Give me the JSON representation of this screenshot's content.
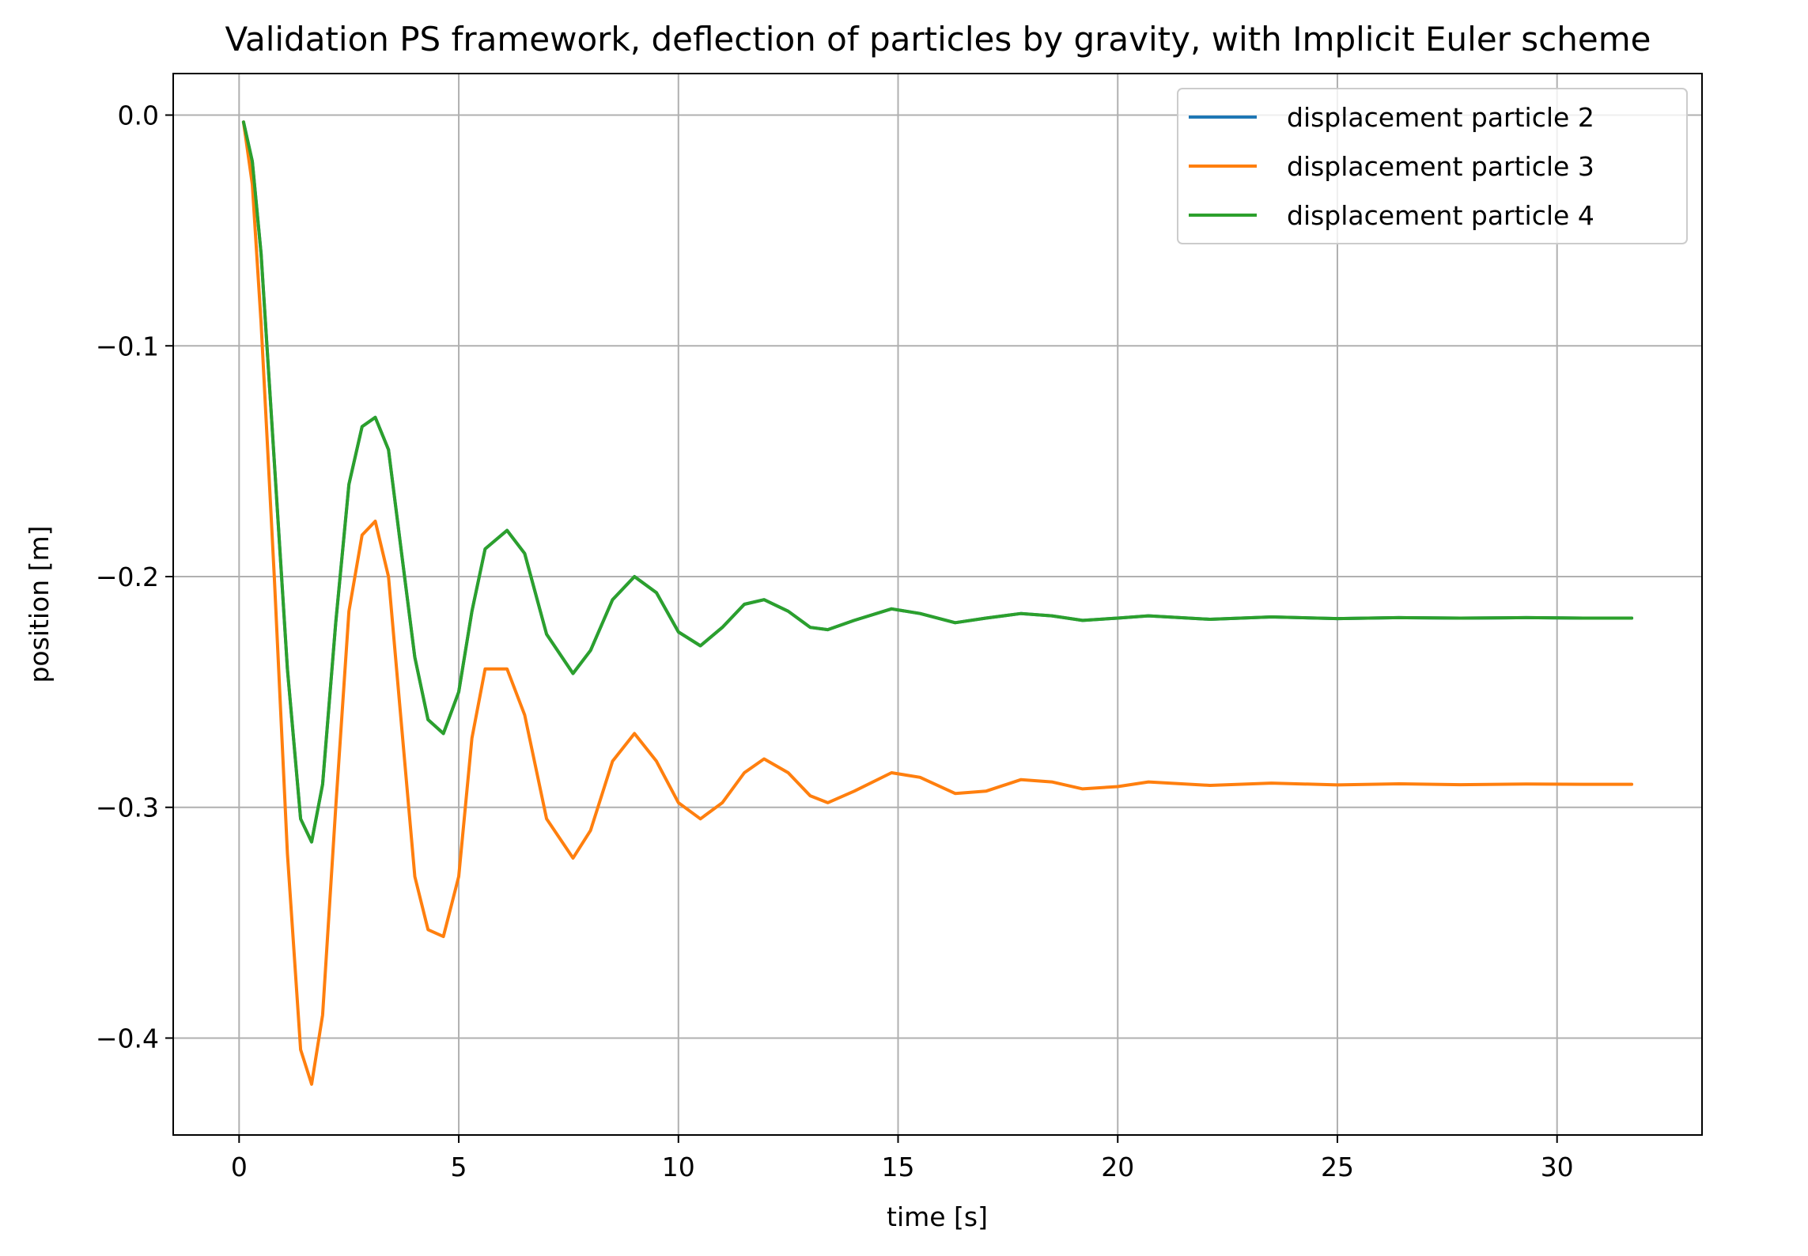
{
  "chart_data": {
    "type": "line",
    "title": "Validation PS framework, deflection of particles by gravity, with Implicit Euler scheme",
    "xlabel": "time [s]",
    "ylabel": "position [m]",
    "xlim": [
      -1.5,
      33.3
    ],
    "ylim": [
      -0.442,
      0.018
    ],
    "xticks": [
      0,
      5,
      10,
      15,
      20,
      25,
      30
    ],
    "xtick_labels": [
      "0",
      "5",
      "10",
      "15",
      "20",
      "25",
      "30"
    ],
    "yticks": [
      0.0,
      -0.1,
      -0.2,
      -0.3,
      -0.4
    ],
    "ytick_labels": [
      "0.0",
      "−0.1",
      "−0.2",
      "−0.3",
      "−0.4"
    ],
    "grid": true,
    "legend_position": "top-right",
    "series": [
      {
        "name": "displacement particle 2",
        "color": "#1f77b4",
        "x": [
          0.1,
          0.3,
          0.5,
          0.8,
          1.1,
          1.4,
          1.65,
          1.9,
          2.2,
          2.5,
          2.8,
          3.1,
          3.4,
          3.7,
          4.0,
          4.3,
          4.65,
          5.0,
          5.3,
          5.6,
          6.1,
          6.5,
          7.0,
          7.6,
          8.0,
          8.5,
          9.0,
          9.5,
          10.0,
          10.5,
          11.0,
          11.5,
          11.95,
          12.5,
          13.0,
          13.4,
          14.0,
          14.85,
          15.5,
          16.3,
          17.0,
          17.8,
          18.5,
          19.2,
          20.0,
          20.7,
          22.1,
          23.5,
          25.0,
          26.4,
          27.8,
          29.3,
          30.6,
          31.7
        ],
        "y": [
          -0.003,
          -0.02,
          -0.06,
          -0.15,
          -0.24,
          -0.305,
          -0.315,
          -0.29,
          -0.22,
          -0.16,
          -0.135,
          -0.131,
          -0.145,
          -0.19,
          -0.235,
          -0.262,
          -0.268,
          -0.25,
          -0.215,
          -0.188,
          -0.18,
          -0.19,
          -0.225,
          -0.242,
          -0.232,
          -0.21,
          -0.2,
          -0.207,
          -0.224,
          -0.23,
          -0.222,
          -0.212,
          -0.21,
          -0.215,
          -0.222,
          -0.223,
          -0.219,
          -0.214,
          -0.216,
          -0.22,
          -0.218,
          -0.216,
          -0.217,
          -0.219,
          -0.218,
          -0.217,
          -0.2185,
          -0.2175,
          -0.2182,
          -0.2178,
          -0.218,
          -0.2178,
          -0.218,
          -0.218
        ]
      },
      {
        "name": "displacement particle 3",
        "color": "#ff7f0e",
        "x": [
          0.1,
          0.3,
          0.5,
          0.8,
          1.1,
          1.4,
          1.65,
          1.9,
          2.2,
          2.5,
          2.8,
          3.1,
          3.4,
          3.7,
          4.0,
          4.3,
          4.65,
          5.0,
          5.3,
          5.6,
          6.1,
          6.5,
          7.0,
          7.6,
          8.0,
          8.5,
          9.0,
          9.5,
          10.0,
          10.5,
          11.0,
          11.5,
          11.95,
          12.5,
          13.0,
          13.4,
          14.0,
          14.85,
          15.5,
          16.3,
          17.0,
          17.8,
          18.5,
          19.2,
          20.0,
          20.7,
          22.1,
          23.5,
          25.0,
          26.4,
          27.8,
          29.3,
          30.6,
          31.7
        ],
        "y": [
          -0.003,
          -0.03,
          -0.09,
          -0.2,
          -0.32,
          -0.405,
          -0.42,
          -0.39,
          -0.3,
          -0.215,
          -0.182,
          -0.176,
          -0.2,
          -0.265,
          -0.33,
          -0.353,
          -0.356,
          -0.33,
          -0.27,
          -0.24,
          -0.24,
          -0.26,
          -0.305,
          -0.322,
          -0.31,
          -0.28,
          -0.268,
          -0.28,
          -0.298,
          -0.305,
          -0.298,
          -0.285,
          -0.279,
          -0.285,
          -0.295,
          -0.298,
          -0.293,
          -0.285,
          -0.287,
          -0.294,
          -0.293,
          -0.288,
          -0.289,
          -0.292,
          -0.291,
          -0.289,
          -0.2905,
          -0.2895,
          -0.2903,
          -0.2898,
          -0.2902,
          -0.2899,
          -0.29,
          -0.29
        ]
      },
      {
        "name": "displacement particle 4",
        "color": "#2ca02c",
        "x": [
          0.1,
          0.3,
          0.5,
          0.8,
          1.1,
          1.4,
          1.65,
          1.9,
          2.2,
          2.5,
          2.8,
          3.1,
          3.4,
          3.7,
          4.0,
          4.3,
          4.65,
          5.0,
          5.3,
          5.6,
          6.1,
          6.5,
          7.0,
          7.6,
          8.0,
          8.5,
          9.0,
          9.5,
          10.0,
          10.5,
          11.0,
          11.5,
          11.95,
          12.5,
          13.0,
          13.4,
          14.0,
          14.85,
          15.5,
          16.3,
          17.0,
          17.8,
          18.5,
          19.2,
          20.0,
          20.7,
          22.1,
          23.5,
          25.0,
          26.4,
          27.8,
          29.3,
          30.6,
          31.7
        ],
        "y": [
          -0.003,
          -0.02,
          -0.06,
          -0.15,
          -0.24,
          -0.305,
          -0.315,
          -0.29,
          -0.22,
          -0.16,
          -0.135,
          -0.131,
          -0.145,
          -0.19,
          -0.235,
          -0.262,
          -0.268,
          -0.25,
          -0.215,
          -0.188,
          -0.18,
          -0.19,
          -0.225,
          -0.242,
          -0.232,
          -0.21,
          -0.2,
          -0.207,
          -0.224,
          -0.23,
          -0.222,
          -0.212,
          -0.21,
          -0.215,
          -0.222,
          -0.223,
          -0.219,
          -0.214,
          -0.216,
          -0.22,
          -0.218,
          -0.216,
          -0.217,
          -0.219,
          -0.218,
          -0.217,
          -0.2185,
          -0.2175,
          -0.2182,
          -0.2178,
          -0.218,
          -0.2178,
          -0.218,
          -0.218
        ]
      }
    ]
  }
}
